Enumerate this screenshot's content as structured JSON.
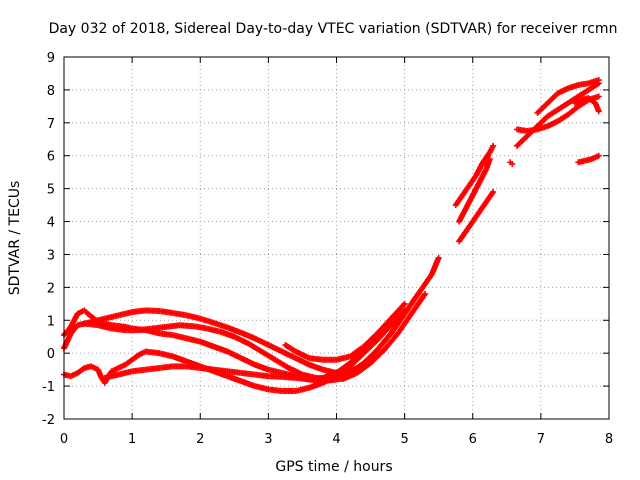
{
  "chart_data": {
    "type": "scatter",
    "title": "Day 032 of 2018, Sidereal Day-to-day VTEC variation (SDTVAR) for receiver rcmn",
    "xlabel": "GPS time / hours",
    "ylabel": "SDTVAR / TECUs",
    "xlim": [
      0,
      8
    ],
    "ylim": [
      -2,
      9
    ],
    "xticks": [
      "0",
      "1",
      "2",
      "3",
      "4",
      "5",
      "6",
      "7",
      "8"
    ],
    "yticks": [
      "-2",
      "-1",
      "0",
      "1",
      "2",
      "3",
      "4",
      "5",
      "6",
      "7",
      "8",
      "9"
    ],
    "grid": true,
    "marker": "+",
    "series": [
      {
        "name": "track-1",
        "color": "#ff0000",
        "x": [
          0.0,
          0.1,
          0.2,
          0.3,
          0.35,
          0.5,
          0.7,
          0.9,
          1.0,
          1.2,
          1.4,
          1.6,
          1.8,
          2.0,
          2.2,
          2.4,
          2.6,
          2.8,
          3.0,
          3.2,
          3.4,
          3.6,
          3.8,
          4.0,
          4.2,
          4.4,
          4.6,
          4.8,
          5.0,
          5.2,
          5.4,
          5.5
        ],
        "values": [
          0.55,
          0.8,
          1.2,
          1.3,
          1.2,
          0.95,
          0.85,
          0.8,
          0.75,
          0.7,
          0.6,
          0.55,
          0.45,
          0.35,
          0.2,
          0.05,
          -0.15,
          -0.35,
          -0.5,
          -0.6,
          -0.7,
          -0.8,
          -0.85,
          -0.8,
          -0.6,
          -0.3,
          0.1,
          0.6,
          1.2,
          1.8,
          2.4,
          2.9
        ]
      },
      {
        "name": "track-2",
        "color": "#ff0000",
        "x": [
          0.0,
          0.1,
          0.2,
          0.4,
          0.6,
          0.8,
          1.0,
          1.2,
          1.4,
          1.6,
          1.8,
          2.0,
          2.2,
          2.4,
          2.6,
          2.8,
          3.0,
          3.2,
          3.4,
          3.6,
          3.8,
          4.0,
          4.2,
          4.4,
          4.6,
          4.8,
          5.0,
          5.2
        ],
        "values": [
          0.15,
          0.6,
          0.85,
          0.95,
          1.05,
          1.15,
          1.25,
          1.3,
          1.28,
          1.22,
          1.15,
          1.05,
          0.92,
          0.78,
          0.62,
          0.45,
          0.25,
          0.05,
          -0.15,
          -0.35,
          -0.5,
          -0.6,
          -0.55,
          -0.35,
          0.1,
          0.6,
          1.2,
          1.8
        ]
      },
      {
        "name": "track-3",
        "color": "#ff0000",
        "x": [
          0.3,
          0.5,
          0.7,
          0.9,
          1.1,
          1.3,
          1.5,
          1.7,
          1.9,
          2.1,
          2.3,
          2.5,
          2.7,
          2.9,
          3.1,
          3.3,
          3.5,
          3.7,
          3.9,
          4.1,
          4.3,
          4.5,
          4.7,
          4.9,
          5.1,
          5.3
        ],
        "values": [
          0.9,
          0.85,
          0.75,
          0.7,
          0.7,
          0.75,
          0.8,
          0.85,
          0.82,
          0.75,
          0.65,
          0.5,
          0.3,
          0.05,
          -0.2,
          -0.45,
          -0.65,
          -0.75,
          -0.8,
          -0.78,
          -0.6,
          -0.3,
          0.1,
          0.6,
          1.2,
          1.8
        ]
      },
      {
        "name": "track-4",
        "color": "#ff0000",
        "x": [
          0.0,
          0.1,
          0.2,
          0.3,
          0.4,
          0.5,
          0.55,
          0.6,
          0.65,
          0.7,
          0.8,
          0.9,
          1.0,
          1.1,
          1.2,
          1.4,
          1.6,
          1.8,
          2.0,
          2.2,
          2.4,
          2.6,
          2.8,
          3.0,
          3.2,
          3.4,
          3.6,
          3.8,
          4.0,
          4.2,
          4.4,
          4.6,
          4.8,
          5.0
        ],
        "values": [
          -0.65,
          -0.7,
          -0.6,
          -0.45,
          -0.4,
          -0.5,
          -0.75,
          -0.9,
          -0.7,
          -0.55,
          -0.45,
          -0.35,
          -0.2,
          -0.05,
          0.05,
          0.0,
          -0.1,
          -0.25,
          -0.4,
          -0.55,
          -0.7,
          -0.85,
          -1.0,
          -1.1,
          -1.15,
          -1.15,
          -1.05,
          -0.9,
          -0.7,
          -0.4,
          0.0,
          0.4,
          0.85,
          1.3
        ]
      },
      {
        "name": "track-5",
        "color": "#ff0000",
        "x": [
          0.6,
          0.8,
          1.0,
          1.2,
          1.4,
          1.6,
          1.8,
          2.0,
          2.2,
          2.4,
          2.6,
          2.8,
          3.0,
          3.2,
          3.4,
          3.6,
          3.8,
          4.0,
          4.2,
          4.4,
          4.6,
          4.8
        ],
        "values": [
          -0.75,
          -0.65,
          -0.55,
          -0.5,
          -0.45,
          -0.4,
          -0.4,
          -0.45,
          -0.5,
          -0.55,
          -0.6,
          -0.65,
          -0.7,
          -0.72,
          -0.75,
          -0.8,
          -0.75,
          -0.6,
          -0.3,
          0.1,
          0.5,
          0.9
        ]
      },
      {
        "name": "track-6",
        "color": "#ff0000",
        "x": [
          3.25,
          3.4,
          3.6,
          3.8,
          4.0,
          4.2,
          4.4,
          4.6,
          4.8,
          5.0
        ],
        "values": [
          0.25,
          0.05,
          -0.15,
          -0.2,
          -0.2,
          -0.1,
          0.2,
          0.6,
          1.05,
          1.5
        ]
      },
      {
        "name": "track-7",
        "color": "#ff0000",
        "x": [
          5.75,
          5.85,
          5.95,
          6.05,
          6.15,
          6.25,
          6.3
        ],
        "values": [
          4.5,
          4.8,
          5.1,
          5.4,
          5.8,
          6.1,
          6.3
        ]
      },
      {
        "name": "track-8",
        "color": "#ff0000",
        "x": [
          5.8,
          5.9,
          6.0,
          6.1,
          6.2,
          6.25
        ],
        "values": [
          4.0,
          4.4,
          4.8,
          5.2,
          5.6,
          5.9
        ]
      },
      {
        "name": "track-9",
        "color": "#ff0000",
        "x": [
          5.8,
          5.9,
          6.0,
          6.1,
          6.2,
          6.3
        ],
        "values": [
          3.4,
          3.7,
          4.0,
          4.3,
          4.6,
          4.9
        ]
      },
      {
        "name": "track-10",
        "color": "#ff0000",
        "x": [
          6.65,
          6.8,
          6.95,
          7.1,
          7.25,
          7.4,
          7.55,
          7.7,
          7.85
        ],
        "values": [
          6.3,
          6.6,
          6.9,
          7.2,
          7.4,
          7.6,
          7.8,
          8.0,
          8.2
        ]
      },
      {
        "name": "track-11",
        "color": "#ff0000",
        "x": [
          6.65,
          6.8,
          6.95,
          7.1,
          7.25,
          7.4,
          7.55,
          7.7,
          7.85
        ],
        "values": [
          6.8,
          6.75,
          6.8,
          6.9,
          7.05,
          7.25,
          7.5,
          7.7,
          7.8
        ]
      },
      {
        "name": "track-12",
        "color": "#ff0000",
        "x": [
          6.95,
          7.1,
          7.25,
          7.4,
          7.55,
          7.7,
          7.85
        ],
        "values": [
          7.3,
          7.6,
          7.9,
          8.05,
          8.15,
          8.2,
          8.3
        ]
      },
      {
        "name": "track-13",
        "color": "#ff0000",
        "x": [
          7.5,
          7.6,
          7.7,
          7.8,
          7.85
        ],
        "values": [
          7.6,
          7.7,
          7.75,
          7.6,
          7.35
        ]
      },
      {
        "name": "track-14",
        "color": "#ff0000",
        "x": [
          7.55,
          7.65,
          7.75,
          7.85
        ],
        "values": [
          5.8,
          5.85,
          5.9,
          6.0
        ]
      },
      {
        "name": "track-15",
        "color": "#ff0000",
        "x": [
          6.55,
          6.58
        ],
        "values": [
          5.8,
          5.75
        ]
      }
    ]
  }
}
